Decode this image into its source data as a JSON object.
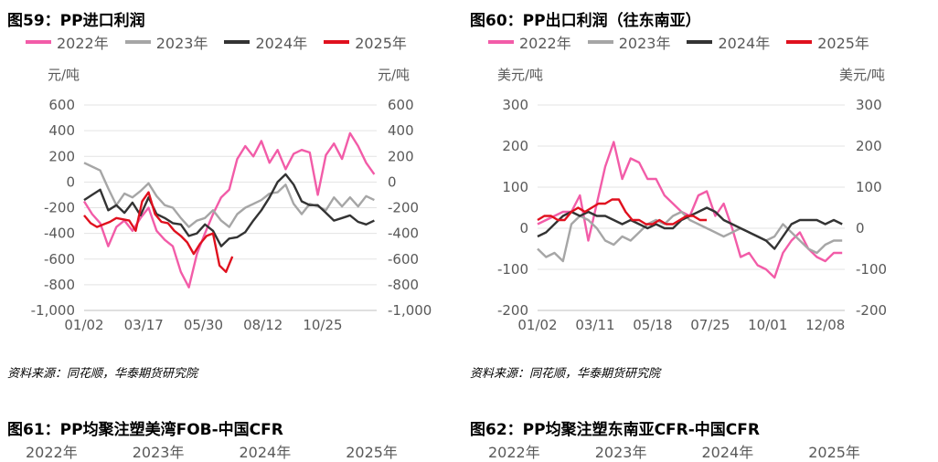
{
  "colors": {
    "s2022": "#f25ca8",
    "s2023": "#a6a6a6",
    "s2024": "#333333",
    "s2025": "#e0101e"
  },
  "chart_data": [
    {
      "type": "line",
      "title": "图59：PP进口利润",
      "unit_left": "元/吨",
      "unit_right": "元/吨",
      "ylim": [
        -1000,
        600
      ],
      "yticks": [
        "600",
        "400",
        "200",
        "0",
        "-200",
        "-400",
        "-600",
        "-800",
        "-1,000"
      ],
      "ytick_values": [
        600,
        400,
        200,
        0,
        -200,
        -400,
        -600,
        -800,
        -1000
      ],
      "xticks": [
        "01/02",
        "03/17",
        "05/30",
        "08/12",
        "10/25"
      ],
      "xtick_days": [
        0,
        74,
        148,
        222,
        296
      ],
      "xmax": 363,
      "series": [
        {
          "name": "2022年",
          "key": "s2022",
          "x": [
            0,
            10,
            20,
            30,
            40,
            50,
            60,
            70,
            80,
            90,
            100,
            110,
            120,
            130,
            140,
            150,
            160,
            170,
            180,
            190,
            200,
            210,
            220,
            230,
            240,
            250,
            260,
            270,
            280,
            290,
            300,
            310,
            320,
            330,
            340,
            350,
            360
          ],
          "values": [
            -150,
            -250,
            -320,
            -500,
            -350,
            -300,
            -380,
            -280,
            -200,
            -380,
            -450,
            -500,
            -700,
            -820,
            -560,
            -400,
            -250,
            -120,
            -60,
            180,
            280,
            200,
            320,
            150,
            250,
            100,
            220,
            250,
            230,
            -100,
            210,
            300,
            180,
            380,
            280,
            150,
            60
          ]
        },
        {
          "name": "2023年",
          "key": "s2023",
          "x": [
            0,
            10,
            20,
            30,
            40,
            50,
            60,
            70,
            80,
            90,
            100,
            110,
            120,
            130,
            140,
            150,
            160,
            170,
            180,
            190,
            200,
            210,
            220,
            230,
            240,
            250,
            260,
            270,
            280,
            290,
            300,
            310,
            320,
            330,
            340,
            350,
            360
          ],
          "values": [
            150,
            120,
            90,
            -50,
            -180,
            -90,
            -120,
            -70,
            -10,
            -110,
            -180,
            -200,
            -280,
            -350,
            -300,
            -280,
            -220,
            -300,
            -350,
            -250,
            -200,
            -170,
            -140,
            -90,
            -80,
            -20,
            -170,
            -250,
            -170,
            -190,
            -220,
            -120,
            -190,
            -120,
            -190,
            -110,
            -140
          ]
        },
        {
          "name": "2024年",
          "key": "s2024",
          "x": [
            0,
            10,
            20,
            30,
            40,
            50,
            60,
            70,
            80,
            90,
            100,
            110,
            120,
            130,
            140,
            150,
            160,
            170,
            180,
            190,
            200,
            210,
            220,
            230,
            240,
            250,
            260,
            270,
            280,
            290,
            300,
            310,
            320,
            330,
            340,
            350,
            360
          ],
          "values": [
            -140,
            -100,
            -60,
            -220,
            -180,
            -240,
            -160,
            -260,
            -120,
            -250,
            -280,
            -320,
            -330,
            -420,
            -400,
            -330,
            -380,
            -500,
            -440,
            -430,
            -390,
            -300,
            -220,
            -120,
            0,
            60,
            -20,
            -150,
            -180,
            -180,
            -240,
            -300,
            -280,
            -260,
            -310,
            -330,
            -300
          ]
        },
        {
          "name": "2025年",
          "key": "s2025",
          "x": [
            0,
            8,
            16,
            24,
            32,
            40,
            48,
            56,
            64,
            72,
            80,
            88,
            96,
            104,
            112,
            120,
            128,
            136,
            144,
            152,
            160,
            168,
            176,
            184
          ],
          "values": [
            -260,
            -320,
            -350,
            -330,
            -310,
            -280,
            -290,
            -300,
            -380,
            -150,
            -80,
            -250,
            -310,
            -320,
            -380,
            -420,
            -470,
            -560,
            -480,
            -420,
            -400,
            -650,
            -700,
            -580
          ]
        }
      ]
    },
    {
      "type": "line",
      "title": "图60：PP出口利润（往东南亚）",
      "unit_left": "美元/吨",
      "unit_right": "美元/吨",
      "ylim": [
        -200,
        300
      ],
      "yticks": [
        "300",
        "200",
        "100",
        "0",
        "-100",
        "-200"
      ],
      "ytick_values": [
        300,
        200,
        100,
        0,
        -100,
        -200
      ],
      "xticks": [
        "01/02",
        "03/11",
        "05/18",
        "07/25",
        "10/01",
        "12/08"
      ],
      "xtick_days": [
        0,
        68,
        136,
        204,
        272,
        340
      ],
      "xmax": 363,
      "series": [
        {
          "name": "2022年",
          "key": "s2022",
          "x": [
            0,
            10,
            20,
            30,
            40,
            50,
            60,
            70,
            80,
            90,
            100,
            110,
            120,
            130,
            140,
            150,
            160,
            170,
            180,
            190,
            200,
            210,
            220,
            230,
            240,
            250,
            260,
            270,
            280,
            290,
            300,
            310,
            320,
            330,
            340,
            350,
            360
          ],
          "values": [
            10,
            20,
            30,
            40,
            40,
            80,
            -30,
            60,
            150,
            210,
            120,
            170,
            160,
            120,
            120,
            80,
            60,
            40,
            30,
            80,
            90,
            30,
            60,
            0,
            -70,
            -60,
            -90,
            -100,
            -120,
            -60,
            -30,
            -10,
            -50,
            -70,
            -80,
            -60,
            -60
          ]
        },
        {
          "name": "2023年",
          "key": "s2023",
          "x": [
            0,
            10,
            20,
            30,
            40,
            50,
            60,
            70,
            80,
            90,
            100,
            110,
            120,
            130,
            140,
            150,
            160,
            170,
            180,
            190,
            200,
            210,
            220,
            230,
            240,
            250,
            260,
            270,
            280,
            290,
            300,
            310,
            320,
            330,
            340,
            350,
            360
          ],
          "values": [
            -50,
            -70,
            -60,
            -80,
            10,
            30,
            20,
            0,
            -30,
            -40,
            -20,
            -30,
            -10,
            10,
            20,
            10,
            30,
            40,
            20,
            10,
            0,
            -10,
            -20,
            -10,
            0,
            -10,
            -20,
            -30,
            -20,
            10,
            -10,
            -30,
            -50,
            -60,
            -40,
            -30,
            -30
          ]
        },
        {
          "name": "2024年",
          "key": "s2024",
          "x": [
            0,
            10,
            20,
            30,
            40,
            50,
            60,
            70,
            80,
            90,
            100,
            110,
            120,
            130,
            140,
            150,
            160,
            170,
            180,
            190,
            200,
            210,
            220,
            230,
            240,
            250,
            260,
            270,
            280,
            290,
            300,
            310,
            320,
            330,
            340,
            350,
            360
          ],
          "values": [
            -20,
            -10,
            10,
            30,
            40,
            30,
            40,
            30,
            30,
            20,
            10,
            20,
            10,
            0,
            10,
            0,
            0,
            20,
            30,
            40,
            50,
            40,
            20,
            10,
            0,
            -10,
            -20,
            -30,
            -50,
            -20,
            10,
            20,
            20,
            20,
            10,
            20,
            10
          ]
        },
        {
          "name": "2025年",
          "key": "s2025",
          "x": [
            0,
            8,
            16,
            24,
            32,
            40,
            48,
            56,
            64,
            72,
            80,
            88,
            96,
            104,
            112,
            120,
            128,
            136,
            144,
            152,
            160,
            168,
            176,
            184,
            192,
            200
          ],
          "values": [
            20,
            30,
            30,
            20,
            20,
            40,
            50,
            40,
            50,
            60,
            60,
            70,
            70,
            40,
            20,
            20,
            10,
            10,
            20,
            10,
            10,
            20,
            30,
            30,
            20,
            20
          ]
        }
      ]
    }
  ],
  "panels": [
    {
      "source": "资料来源：同花顺，华泰期货研究院",
      "next_title": "图61：PP均聚注塑美湾FOB-中国CFR"
    },
    {
      "source": "资料来源：同花顺，华泰期货研究院",
      "next_title": "图62：PP均聚注塑东南亚CFR-中国CFR"
    }
  ],
  "legend": [
    "2022年",
    "2023年",
    "2024年",
    "2025年"
  ]
}
